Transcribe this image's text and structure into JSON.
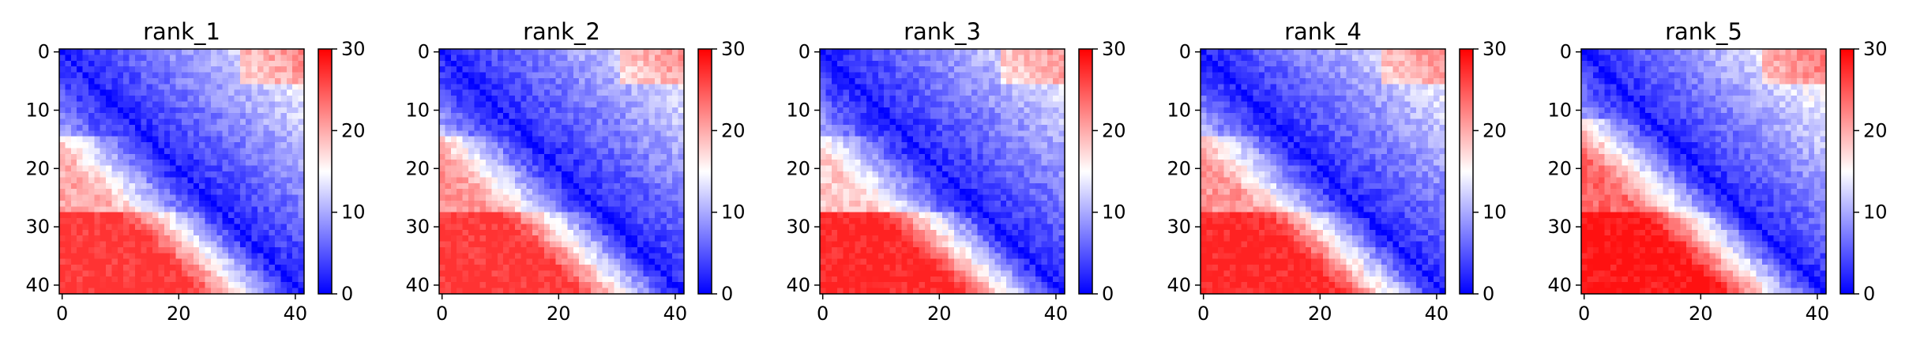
{
  "chart_data": [
    {
      "type": "heatmap",
      "title": "rank_1",
      "size": 42,
      "xticks": [
        0,
        20,
        40
      ],
      "yticks": [
        0,
        10,
        20,
        30,
        40
      ],
      "colorbar": {
        "ticks": [
          0,
          10,
          20,
          30
        ],
        "range": [
          0,
          30
        ],
        "cmap": "bwr"
      },
      "grid": false,
      "pattern": {
        "diag_min": 2,
        "far_max": 27,
        "slope": 0.72,
        "band": [
          [
            0,
            15,
            13
          ],
          [
            15,
            28,
            20
          ],
          [
            28,
            42,
            27
          ]
        ],
        "seed": 11
      }
    },
    {
      "type": "heatmap",
      "title": "rank_2",
      "size": 42,
      "xticks": [
        0,
        20,
        40
      ],
      "yticks": [
        0,
        10,
        20,
        30,
        40
      ],
      "colorbar": {
        "ticks": [
          0,
          10,
          20,
          30
        ],
        "range": [
          0,
          30
        ],
        "cmap": "bwr"
      },
      "grid": false,
      "pattern": {
        "diag_min": 2,
        "far_max": 27,
        "slope": 0.7,
        "band": [
          [
            0,
            15,
            14
          ],
          [
            15,
            28,
            21
          ],
          [
            28,
            42,
            27
          ]
        ],
        "seed": 23
      }
    },
    {
      "type": "heatmap",
      "title": "rank_3",
      "size": 42,
      "xticks": [
        0,
        20,
        40
      ],
      "yticks": [
        0,
        10,
        20,
        30,
        40
      ],
      "colorbar": {
        "ticks": [
          0,
          10,
          20,
          30
        ],
        "range": [
          0,
          30
        ],
        "cmap": "bwr"
      },
      "grid": false,
      "pattern": {
        "diag_min": 2,
        "far_max": 28,
        "slope": 0.68,
        "band": [
          [
            0,
            15,
            13
          ],
          [
            15,
            28,
            18
          ],
          [
            28,
            42,
            28
          ]
        ],
        "seed": 37
      }
    },
    {
      "type": "heatmap",
      "title": "rank_4",
      "size": 42,
      "xticks": [
        0,
        20,
        40
      ],
      "yticks": [
        0,
        10,
        20,
        30,
        40
      ],
      "colorbar": {
        "ticks": [
          0,
          10,
          20,
          30
        ],
        "range": [
          0,
          30
        ],
        "cmap": "bwr"
      },
      "grid": false,
      "pattern": {
        "diag_min": 2,
        "far_max": 28,
        "slope": 0.72,
        "band": [
          [
            0,
            15,
            14
          ],
          [
            15,
            28,
            21
          ],
          [
            28,
            42,
            28
          ]
        ],
        "seed": 41
      }
    },
    {
      "type": "heatmap",
      "title": "rank_5",
      "size": 42,
      "xticks": [
        0,
        20,
        40
      ],
      "yticks": [
        0,
        10,
        20,
        30,
        40
      ],
      "colorbar": {
        "ticks": [
          0,
          10,
          20,
          30
        ],
        "range": [
          0,
          30
        ],
        "cmap": "bwr"
      },
      "grid": false,
      "pattern": {
        "diag_min": 2,
        "far_max": 29,
        "slope": 0.8,
        "band": [
          [
            0,
            12,
            16
          ],
          [
            12,
            28,
            24
          ],
          [
            28,
            42,
            29
          ]
        ],
        "seed": 53
      }
    }
  ]
}
